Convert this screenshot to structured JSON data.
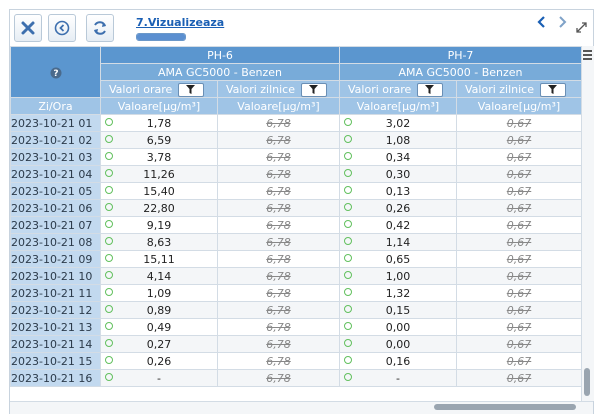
{
  "toolbar": {
    "close_icon": "close-x-icon",
    "back_icon": "circle-arrow-left-icon",
    "refresh_icon": "refresh-icon",
    "breadcrumb": "7.Vizualizeaza",
    "progress_percent": 100,
    "prev_icon": "chevron-left-icon",
    "next_icon": "chevron-right-icon",
    "expand_icon": "expand-icon",
    "accent": "#1a5fb4"
  },
  "grid": {
    "help_icon": "help-icon",
    "stations": [
      "PH-6",
      "PH-7"
    ],
    "sensors": [
      "AMA GC5000 - Benzen",
      "AMA GC5000 - Benzen"
    ],
    "sub_headers": [
      "Valori orare",
      "Valori zilnice",
      "Valori orare",
      "Valori zilnice"
    ],
    "row_header": "Zi/Ora",
    "value_header": "Valoare[µg/m³]",
    "header_colors": {
      "top": "#5b96cf",
      "mid": "#78abd9",
      "low": "#9fc4e6"
    },
    "status_dot_color": "#62c05e",
    "rows": [
      {
        "date": "2023-10-21 01",
        "ph6_hourly": "1,78",
        "ph6_daily": "6,78",
        "ph7_hourly": "3,02",
        "ph7_daily": "0,67"
      },
      {
        "date": "2023-10-21 02",
        "ph6_hourly": "6,59",
        "ph6_daily": "6,78",
        "ph7_hourly": "1,08",
        "ph7_daily": "0,67"
      },
      {
        "date": "2023-10-21 03",
        "ph6_hourly": "3,78",
        "ph6_daily": "6,78",
        "ph7_hourly": "0,34",
        "ph7_daily": "0,67"
      },
      {
        "date": "2023-10-21 04",
        "ph6_hourly": "11,26",
        "ph6_daily": "6,78",
        "ph7_hourly": "0,30",
        "ph7_daily": "0,67"
      },
      {
        "date": "2023-10-21 05",
        "ph6_hourly": "15,40",
        "ph6_daily": "6,78",
        "ph7_hourly": "0,13",
        "ph7_daily": "0,67"
      },
      {
        "date": "2023-10-21 06",
        "ph6_hourly": "22,80",
        "ph6_daily": "6,78",
        "ph7_hourly": "0,26",
        "ph7_daily": "0,67"
      },
      {
        "date": "2023-10-21 07",
        "ph6_hourly": "9,19",
        "ph6_daily": "6,78",
        "ph7_hourly": "0,42",
        "ph7_daily": "0,67"
      },
      {
        "date": "2023-10-21 08",
        "ph6_hourly": "8,63",
        "ph6_daily": "6,78",
        "ph7_hourly": "1,14",
        "ph7_daily": "0,67"
      },
      {
        "date": "2023-10-21 09",
        "ph6_hourly": "15,11",
        "ph6_daily": "6,78",
        "ph7_hourly": "0,65",
        "ph7_daily": "0,67"
      },
      {
        "date": "2023-10-21 10",
        "ph6_hourly": "4,14",
        "ph6_daily": "6,78",
        "ph7_hourly": "1,00",
        "ph7_daily": "0,67"
      },
      {
        "date": "2023-10-21 11",
        "ph6_hourly": "1,09",
        "ph6_daily": "6,78",
        "ph7_hourly": "1,32",
        "ph7_daily": "0,67"
      },
      {
        "date": "2023-10-21 12",
        "ph6_hourly": "0,89",
        "ph6_daily": "6,78",
        "ph7_hourly": "0,15",
        "ph7_daily": "0,67"
      },
      {
        "date": "2023-10-21 13",
        "ph6_hourly": "0,49",
        "ph6_daily": "6,78",
        "ph7_hourly": "0,00",
        "ph7_daily": "0,67"
      },
      {
        "date": "2023-10-21 14",
        "ph6_hourly": "0,27",
        "ph6_daily": "6,78",
        "ph7_hourly": "0,00",
        "ph7_daily": "0,67"
      },
      {
        "date": "2023-10-21 15",
        "ph6_hourly": "0,26",
        "ph6_daily": "6,78",
        "ph7_hourly": "0,16",
        "ph7_daily": "0,67"
      },
      {
        "date": "2023-10-21 16",
        "ph6_hourly": "-",
        "ph6_daily": "6,78",
        "ph7_hourly": "-",
        "ph7_daily": "0,67"
      }
    ]
  },
  "scroll_icons": {
    "menu": "hamburger-menu-icon"
  }
}
